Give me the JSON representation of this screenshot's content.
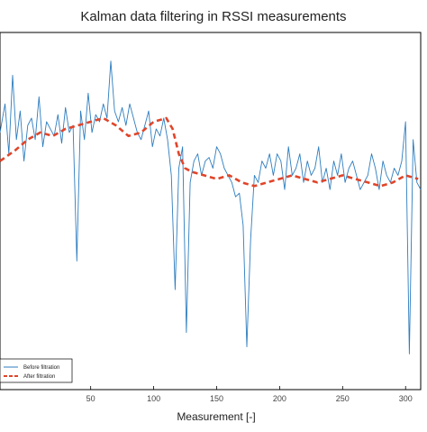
{
  "colors": {
    "before": "#2e7dbf",
    "after": "#e0452a",
    "axis": "#000000",
    "background": "#ffffff"
  },
  "chart_data": {
    "type": "line",
    "title": "Kalman data filtering in RSSI measurements",
    "xlabel": "Measurement [-]",
    "ylabel": "",
    "xlim": [
      -22,
      312
    ],
    "ylim": [
      0,
      100
    ],
    "xticks": [
      50,
      100,
      150,
      200,
      250,
      300
    ],
    "xtick_labels": [
      "50",
      "100",
      "150",
      "200",
      "250",
      "300"
    ],
    "grid": false,
    "legend": {
      "placement": "bottom-left"
    },
    "series": [
      {
        "name": "Before filtration",
        "style": "solid",
        "color": "#2e7dbf",
        "x": [
          -22,
          -18,
          -15,
          -12,
          -9,
          -6,
          -3,
          0,
          3,
          6,
          9,
          12,
          15,
          18,
          21,
          24,
          27,
          30,
          33,
          36,
          39,
          42,
          45,
          48,
          51,
          54,
          57,
          60,
          63,
          66,
          69,
          72,
          75,
          78,
          81,
          84,
          87,
          90,
          93,
          96,
          99,
          102,
          105,
          108,
          111,
          114,
          117,
          120,
          123,
          126,
          129,
          132,
          135,
          138,
          141,
          144,
          147,
          150,
          153,
          156,
          159,
          162,
          165,
          168,
          171,
          174,
          177,
          180,
          183,
          186,
          189,
          192,
          195,
          198,
          201,
          204,
          207,
          210,
          213,
          216,
          219,
          222,
          225,
          228,
          231,
          234,
          237,
          240,
          243,
          246,
          249,
          252,
          255,
          258,
          261,
          264,
          267,
          270,
          273,
          276,
          279,
          282,
          285,
          288,
          291,
          294,
          297,
          300,
          303,
          306,
          309,
          312
        ],
        "y": [
          72,
          80,
          66,
          88,
          70,
          78,
          64,
          74,
          76,
          70,
          82,
          68,
          75,
          73,
          71,
          77,
          69,
          79,
          72,
          74,
          36,
          78,
          70,
          83,
          72,
          77,
          75,
          80,
          76,
          92,
          78,
          75,
          79,
          74,
          80,
          76,
          72,
          70,
          74,
          78,
          68,
          73,
          71,
          76,
          70,
          60,
          28,
          62,
          68,
          16,
          58,
          64,
          66,
          60,
          64,
          65,
          62,
          68,
          66,
          62,
          60,
          58,
          54,
          55,
          46,
          12,
          42,
          60,
          58,
          64,
          62,
          66,
          60,
          66,
          64,
          56,
          68,
          60,
          62,
          66,
          58,
          64,
          60,
          62,
          68,
          58,
          62,
          56,
          64,
          60,
          66,
          58,
          62,
          64,
          60,
          56,
          58,
          60,
          66,
          62,
          56,
          64,
          60,
          58,
          62,
          60,
          64,
          75,
          10,
          70,
          58,
          56
        ],
        "note_samples": "dense noisy signal with deep drops near x=40, 118, 125, 168, 305"
      },
      {
        "name": "After filtration",
        "style": "dashed",
        "color": "#e0452a",
        "x": [
          -22,
          -10,
          0,
          10,
          20,
          30,
          40,
          50,
          60,
          70,
          80,
          90,
          100,
          110,
          115,
          120,
          125,
          130,
          140,
          150,
          160,
          170,
          180,
          190,
          200,
          210,
          220,
          230,
          240,
          250,
          260,
          270,
          280,
          290,
          300,
          310
        ],
        "y": [
          64,
          67,
          70,
          72,
          71,
          73,
          74,
          75,
          76,
          74,
          71,
          72,
          75,
          76,
          73,
          66,
          62,
          61,
          60,
          59,
          60,
          58,
          57,
          58,
          59,
          60,
          59,
          58,
          59,
          60,
          59,
          58,
          57,
          58,
          60,
          59
        ]
      }
    ]
  }
}
